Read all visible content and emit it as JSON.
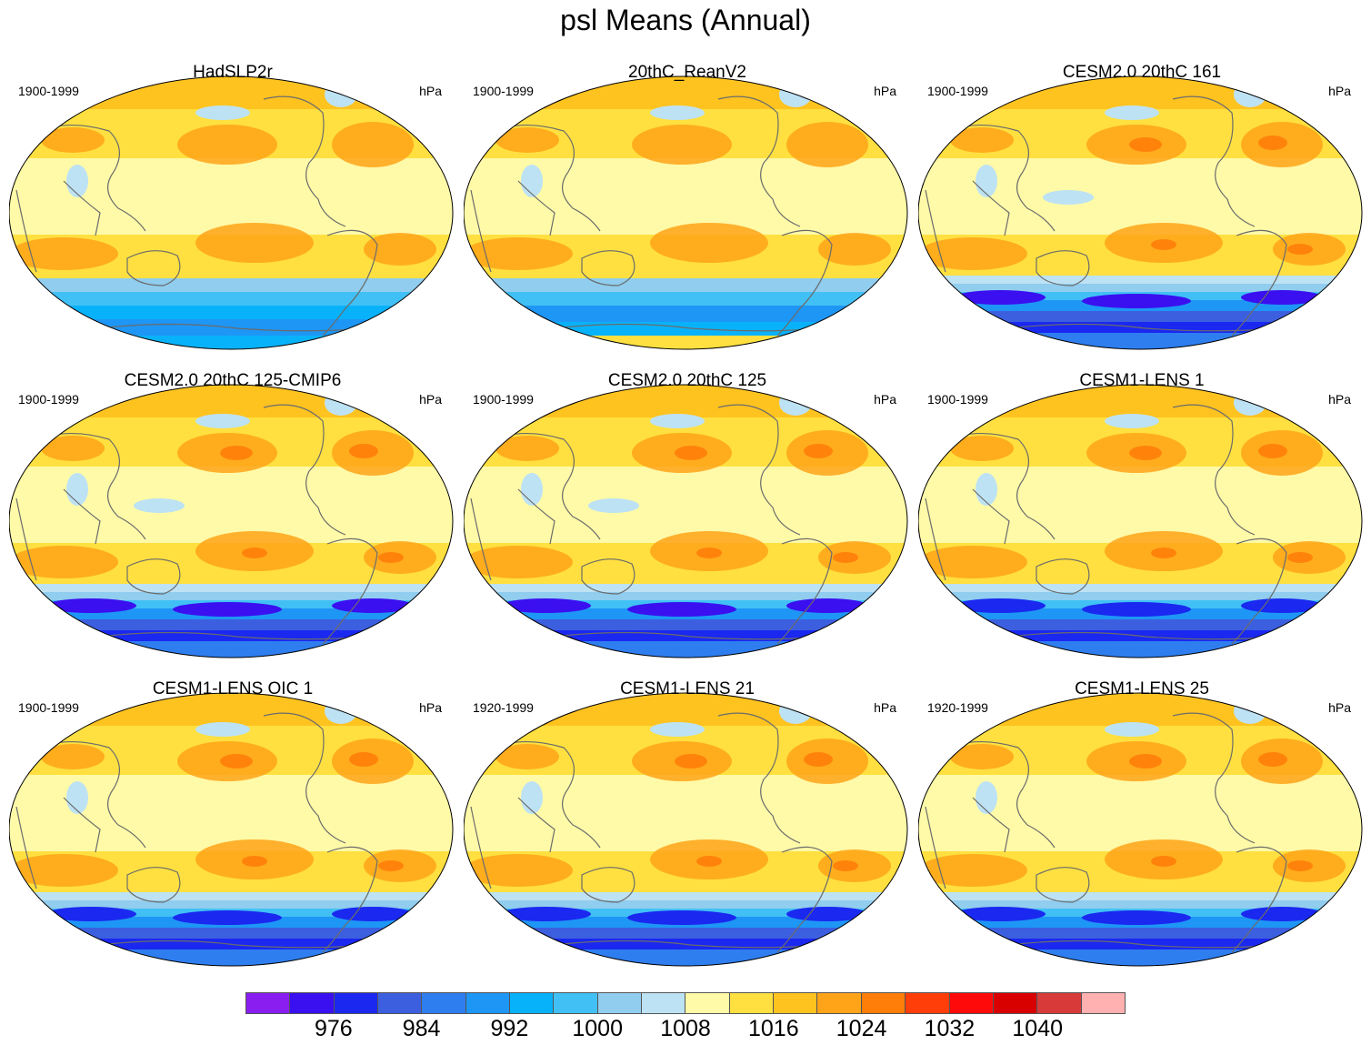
{
  "figure": {
    "title": "psl Means (Annual)",
    "units": "hPa"
  },
  "panels": [
    {
      "title": "HadSLP2r",
      "period": "1900-1999",
      "units": "hPa",
      "variant": "obs"
    },
    {
      "title": "20thC_ReanV2",
      "period": "1900-1999",
      "units": "hPa",
      "variant": "rean"
    },
    {
      "title": "CESM2.0 20thC 161",
      "period": "1900-1999",
      "units": "hPa",
      "variant": "cesm2"
    },
    {
      "title": "CESM2.0 20thC 125-CMIP6",
      "period": "1900-1999",
      "units": "hPa",
      "variant": "cesm2"
    },
    {
      "title": "CESM2.0 20thC 125",
      "period": "1900-1999",
      "units": "hPa",
      "variant": "cesm2"
    },
    {
      "title": "CESM1-LENS 1",
      "period": "1900-1999",
      "units": "hPa",
      "variant": "cesm1"
    },
    {
      "title": "CESM1-LENS OIC 1",
      "period": "1900-1999",
      "units": "hPa",
      "variant": "cesm1"
    },
    {
      "title": "CESM1-LENS 21",
      "period": "1920-1999",
      "units": "hPa",
      "variant": "cesm1"
    },
    {
      "title": "CESM1-LENS 25",
      "period": "1920-1999",
      "units": "hPa",
      "variant": "cesm1"
    }
  ],
  "colorbar": {
    "colors": [
      "#8a1ef0",
      "#3a0ff0",
      "#1a28f0",
      "#3c5fe0",
      "#2f7ef0",
      "#1e96f5",
      "#08b2fa",
      "#41c0f5",
      "#90cdee",
      "#bde2f4",
      "#fffaa8",
      "#ffe040",
      "#ffc320",
      "#ffa318",
      "#ff7e0a",
      "#ff3e0a",
      "#ff0a0a",
      "#d90000",
      "#d83a3a",
      "#ffb0b0"
    ],
    "labels": [
      "976",
      "984",
      "992",
      "1000",
      "1008",
      "1016",
      "1024",
      "1032",
      "1040"
    ]
  }
}
